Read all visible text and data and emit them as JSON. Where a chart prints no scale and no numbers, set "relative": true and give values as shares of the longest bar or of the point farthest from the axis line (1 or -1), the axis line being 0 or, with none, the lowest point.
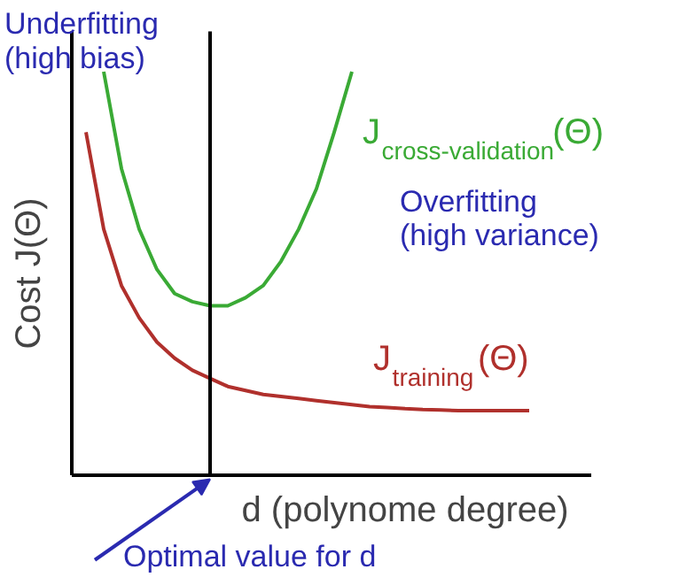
{
  "chart_data": {
    "type": "line",
    "relative": true,
    "xlabel": "d (polynome degree)",
    "ylabel": "Cost J(Θ)",
    "categories": [
      null,
      null,
      null,
      null,
      null,
      null,
      null,
      null,
      null,
      null,
      null,
      null,
      null,
      null,
      null,
      null,
      null,
      null,
      null,
      null,
      null,
      null,
      null,
      null,
      null,
      null,
      null,
      null,
      null
    ],
    "series": [
      {
        "name": "J$_{cross-validation}$(Θ)",
        "color": "#3aaa35",
        "values": [
          null,
          1.0,
          0.76,
          0.61,
          0.51,
          0.45,
          0.43,
          0.42,
          0.42,
          0.44,
          0.47,
          0.53,
          0.61,
          0.71,
          0.85,
          1.0,
          null,
          null,
          null,
          null,
          null,
          null,
          null,
          null,
          null,
          null,
          null,
          null,
          null
        ]
      },
      {
        "name": "J$_{training}$(Θ)",
        "color": "#b0302c",
        "values": [
          0.85,
          0.61,
          0.47,
          0.39,
          0.33,
          0.29,
          0.26,
          0.24,
          0.22,
          0.21,
          0.2,
          0.195,
          0.19,
          0.185,
          0.18,
          0.175,
          0.17,
          0.168,
          0.165,
          0.163,
          0.162,
          0.16,
          0.16,
          0.16,
          0.16,
          0.16,
          null,
          null,
          null
        ]
      }
    ],
    "annotations": [
      "Underfitting\n(high bias)",
      "Overfitting\n(high variance)",
      "Optimal value for d"
    ],
    "legend": false,
    "line_style": "solid",
    "marker": "none"
  }
}
